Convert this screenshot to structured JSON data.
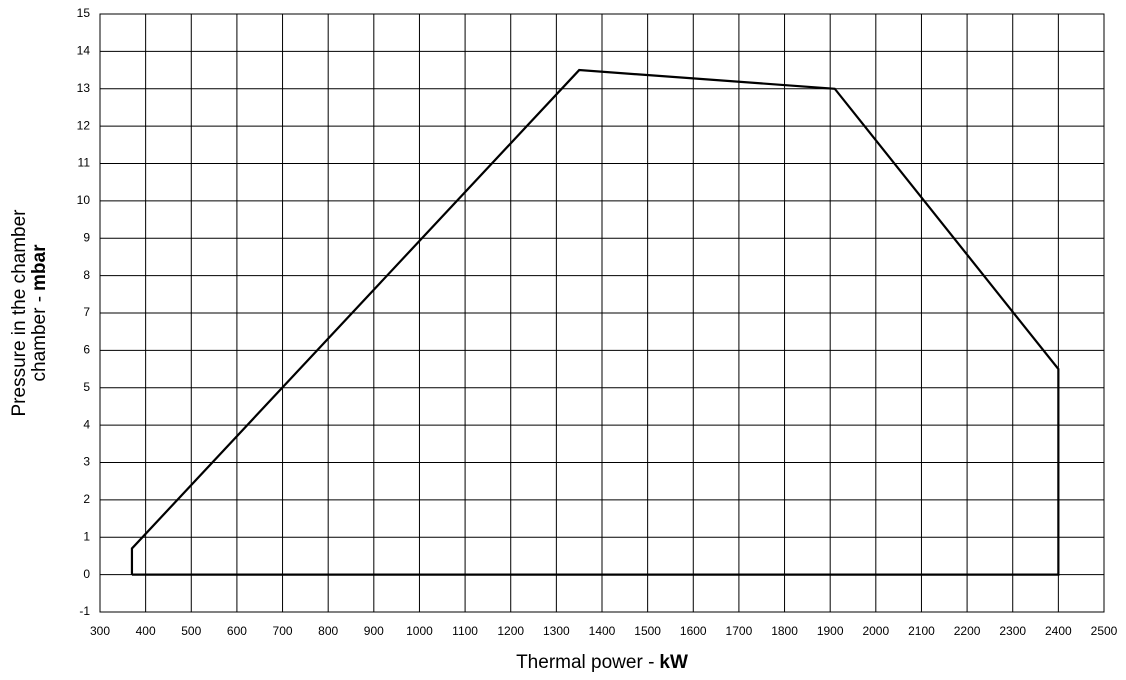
{
  "chart_data": {
    "type": "line",
    "x_label": "Thermal power -",
    "x_label_unit": "kW",
    "y_label": [
      "Pressure in the chamber",
      "chamber -"
    ],
    "y_label_unit": "mbar",
    "series": [
      {
        "color": "#000000",
        "x": [
          370,
          370,
          1350,
          1910,
          2400,
          2400,
          370
        ],
        "values": [
          0,
          0.7,
          13.5,
          13,
          5.5,
          0,
          0
        ]
      }
    ],
    "xlim": [
      300,
      2500
    ],
    "xticks": [
      300,
      400,
      500,
      600,
      700,
      800,
      900,
      1000,
      1100,
      1200,
      1300,
      1400,
      1500,
      1600,
      1700,
      1800,
      1900,
      2000,
      2100,
      2200,
      2300,
      2400,
      2500
    ],
    "ylim": [
      -1,
      15
    ],
    "yticks": [
      -1,
      0,
      1,
      2,
      3,
      4,
      5,
      6,
      7,
      8,
      9,
      10,
      11,
      12,
      13,
      14,
      15
    ],
    "grid": true
  }
}
